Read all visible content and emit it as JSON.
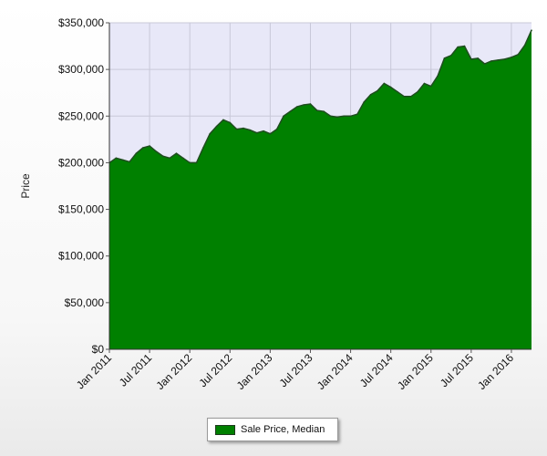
{
  "chart_data": {
    "type": "area",
    "title": "",
    "xlabel": "",
    "ylabel": "Price",
    "ylim": [
      0,
      350000
    ],
    "yticks": [
      0,
      50000,
      100000,
      150000,
      200000,
      250000,
      300000,
      350000
    ],
    "ytick_labels": [
      "$0",
      "$50,000",
      "$100,000",
      "$150,000",
      "$200,000",
      "$250,000",
      "$300,000",
      "$350,000"
    ],
    "xtick_labels": [
      "Jan 2011",
      "Jul 2011",
      "Jan 2012",
      "Jul 2012",
      "Jan 2013",
      "Jul 2013",
      "Jan 2014",
      "Jul 2014",
      "Jan 2015",
      "Jul 2015",
      "Jan 2016"
    ],
    "x_start": "Jan 2011",
    "x_end": "Apr 2016",
    "grid": true,
    "legend_position": "bottom-center",
    "colors": {
      "fill": "#008000",
      "line": "#1f4d1f",
      "plot_background": "#e8e8f8",
      "grid": "#c8c8d8"
    },
    "series": [
      {
        "name": "Sale Price, Median",
        "x": [
          "Jan 2011",
          "Feb 2011",
          "Mar 2011",
          "Apr 2011",
          "May 2011",
          "Jun 2011",
          "Jul 2011",
          "Aug 2011",
          "Sep 2011",
          "Oct 2011",
          "Nov 2011",
          "Dec 2011",
          "Jan 2012",
          "Feb 2012",
          "Mar 2012",
          "Apr 2012",
          "May 2012",
          "Jun 2012",
          "Jul 2012",
          "Aug 2012",
          "Sep 2012",
          "Oct 2012",
          "Nov 2012",
          "Dec 2012",
          "Jan 2013",
          "Feb 2013",
          "Mar 2013",
          "Apr 2013",
          "May 2013",
          "Jun 2013",
          "Jul 2013",
          "Aug 2013",
          "Sep 2013",
          "Oct 2013",
          "Nov 2013",
          "Dec 2013",
          "Jan 2014",
          "Feb 2014",
          "Mar 2014",
          "Apr 2014",
          "May 2014",
          "Jun 2014",
          "Jul 2014",
          "Aug 2014",
          "Sep 2014",
          "Oct 2014",
          "Nov 2014",
          "Dec 2014",
          "Jan 2015",
          "Feb 2015",
          "Mar 2015",
          "Apr 2015",
          "May 2015",
          "Jun 2015",
          "Jul 2015",
          "Aug 2015",
          "Sep 2015",
          "Oct 2015",
          "Nov 2015",
          "Dec 2015",
          "Jan 2016",
          "Feb 2016",
          "Mar 2016",
          "Apr 2016"
        ],
        "values": [
          200000,
          205000,
          203000,
          201000,
          210000,
          216000,
          218000,
          212000,
          207000,
          205000,
          210000,
          205000,
          200000,
          200000,
          216000,
          231000,
          239000,
          246000,
          243000,
          236000,
          237000,
          235000,
          232000,
          234000,
          231000,
          236000,
          250000,
          255000,
          260000,
          262000,
          263000,
          256000,
          255000,
          250000,
          249000,
          250000,
          250000,
          252000,
          265000,
          273000,
          277000,
          285000,
          281000,
          276000,
          271000,
          271000,
          276000,
          285000,
          282000,
          293000,
          312000,
          315000,
          324000,
          325000,
          311000,
          312000,
          306000,
          309000,
          310000,
          311000,
          313000,
          316000,
          326000,
          342000
        ]
      }
    ]
  },
  "legend": {
    "label": "Sale Price, Median"
  }
}
